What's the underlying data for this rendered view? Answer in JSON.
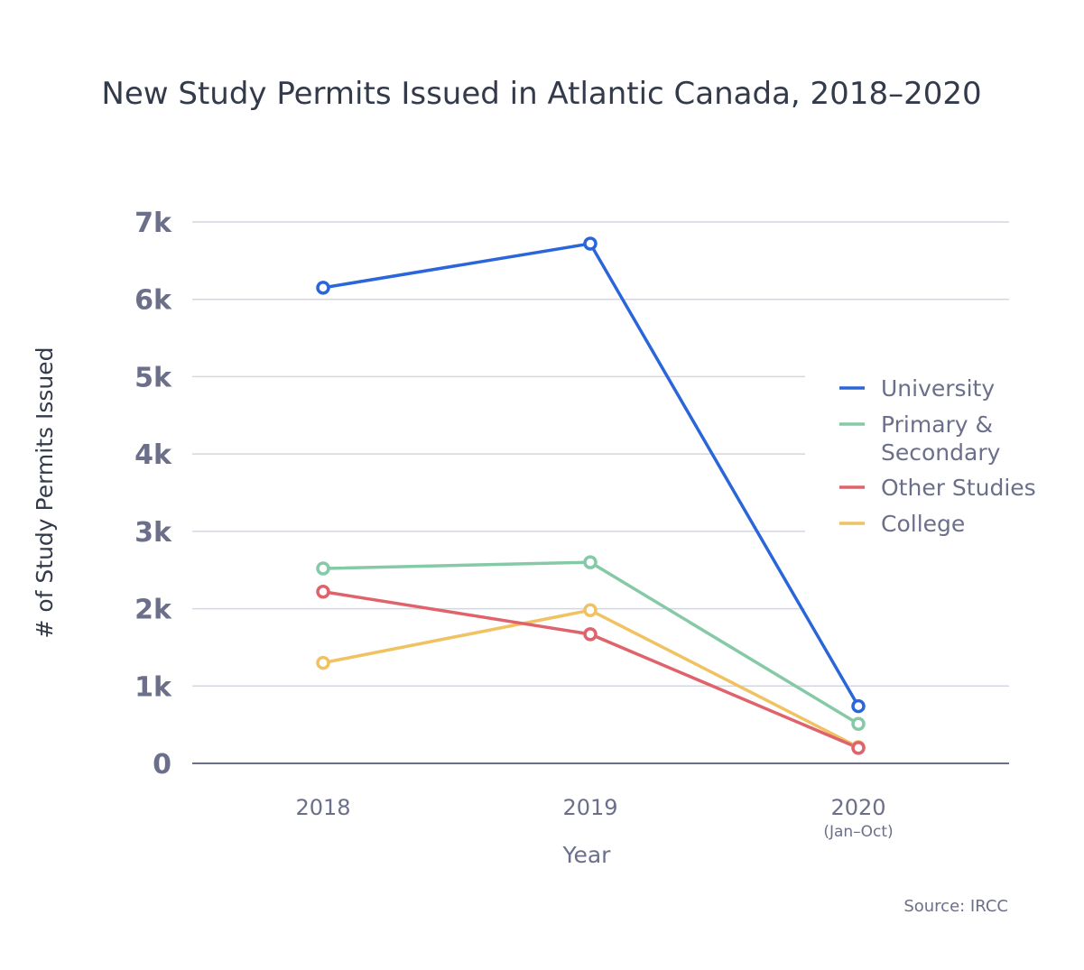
{
  "chart_data": {
    "type": "line",
    "title": "New Study Permits Issued in Atlantic Canada, 2018–2020",
    "xlabel": "Year",
    "ylabel": "# of Study Permits Issued",
    "categories": [
      "2018",
      "2019",
      "2020"
    ],
    "category_sublabels": [
      "",
      "",
      "(Jan–Oct)"
    ],
    "ylim": [
      0,
      7000
    ],
    "yticks": [
      0,
      1000,
      2000,
      3000,
      4000,
      5000,
      6000,
      7000
    ],
    "ytick_labels": [
      "0",
      "1k",
      "2k",
      "3k",
      "4k",
      "5k",
      "6k",
      "7k"
    ],
    "grid": true,
    "legend_position": "right",
    "series": [
      {
        "name": "University",
        "color": "#2a66d9",
        "values": [
          6150,
          6720,
          740
        ]
      },
      {
        "name": "Primary & Secondary",
        "color": "#85c9a6",
        "values": [
          2520,
          2600,
          510
        ]
      },
      {
        "name": "Other Studies",
        "color": "#e0626b",
        "values": [
          2220,
          1670,
          200
        ]
      },
      {
        "name": "College",
        "color": "#f0c262",
        "values": [
          1300,
          1980,
          210
        ]
      }
    ],
    "source": "Source: IRCC"
  }
}
